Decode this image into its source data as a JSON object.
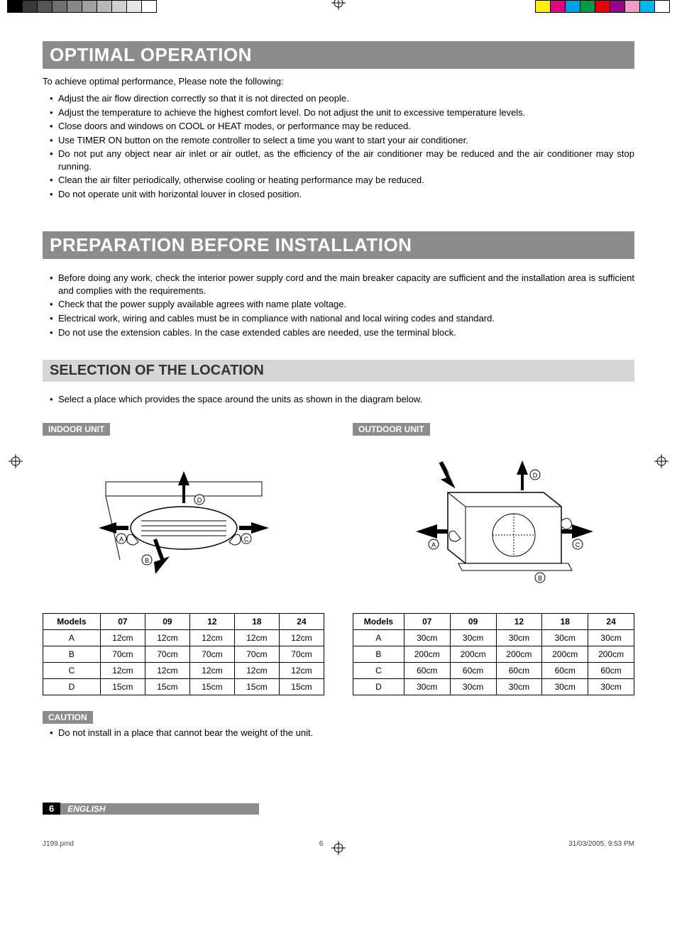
{
  "regmarks": {
    "left_swatches": [
      "#000000",
      "#3a3a3a",
      "#555555",
      "#707070",
      "#888888",
      "#a0a0a0",
      "#b8b8b8",
      "#cfcfcf",
      "#e6e6e6",
      "#ffffff"
    ],
    "right_swatches": [
      "#fff200",
      "#e4007f",
      "#00a0e9",
      "#009944",
      "#e60012",
      "#920783",
      "#f29ec2",
      "#00b7ee",
      "#ffffff"
    ]
  },
  "section1": {
    "title": "OPTIMAL OPERATION",
    "intro": "To achieve optimal performance, Please note the following:",
    "bullets": [
      "Adjust the air flow direction correctly so that it is not directed on people.",
      "Adjust the temperature to achieve the highest comfort level. Do not adjust the unit to excessive temperature levels.",
      "Close doors and windows on COOL or HEAT modes, or performance may be reduced.",
      "Use TIMER ON button on the remote controller to select a time you want to start your air conditioner.",
      "Do not put any object near air inlet or air outlet, as the efficiency of the air conditioner may be reduced and the air conditioner may stop running.",
      "Clean the air filter periodically, otherwise cooling or heating performance may be reduced.",
      "Do not operate unit with horizontal louver in closed position."
    ]
  },
  "section2": {
    "title": "PREPARATION BEFORE INSTALLATION",
    "bullets": [
      "Before doing any work, check the interior power supply cord and the main breaker capacity are sufficient and the installation area is sufficient and complies with the requirements.",
      "Check that the power supply available agrees with name plate voltage.",
      "Electrical work, wiring and cables must be in compliance with national and local wiring codes and standard.",
      "Do not use the extension cables. In the case extended cables are needed, use the terminal block."
    ]
  },
  "subsection": {
    "title": "SELECTION OF THE LOCATION",
    "intro": "Select a place which provides the space around the units as shown in the diagram below."
  },
  "indoor": {
    "label": "INDOOR UNIT",
    "table": {
      "headers": [
        "Models",
        "07",
        "09",
        "12",
        "18",
        "24"
      ],
      "rows": [
        [
          "A",
          "12cm",
          "12cm",
          "12cm",
          "12cm",
          "12cm"
        ],
        [
          "B",
          "70cm",
          "70cm",
          "70cm",
          "70cm",
          "70cm"
        ],
        [
          "C",
          "12cm",
          "12cm",
          "12cm",
          "12cm",
          "12cm"
        ],
        [
          "D",
          "15cm",
          "15cm",
          "15cm",
          "15cm",
          "15cm"
        ]
      ]
    }
  },
  "outdoor": {
    "label": "OUTDOOR UNIT",
    "table": {
      "headers": [
        "Models",
        "07",
        "09",
        "12",
        "18",
        "24"
      ],
      "rows": [
        [
          "A",
          "30cm",
          "30cm",
          "30cm",
          "30cm",
          "30cm"
        ],
        [
          "B",
          "200cm",
          "200cm",
          "200cm",
          "200cm",
          "200cm"
        ],
        [
          "C",
          "60cm",
          "60cm",
          "60cm",
          "60cm",
          "60cm"
        ],
        [
          "D",
          "30cm",
          "30cm",
          "30cm",
          "30cm",
          "30cm"
        ]
      ]
    }
  },
  "caution": {
    "label": "CAUTION",
    "text": "Do not install in a place that cannot bear the weight of the unit."
  },
  "footer": {
    "page": "6",
    "lang": "ENGLISH",
    "file": "J199.pmd",
    "sheet": "6",
    "datetime": "31/03/2005, 9:53 PM"
  }
}
